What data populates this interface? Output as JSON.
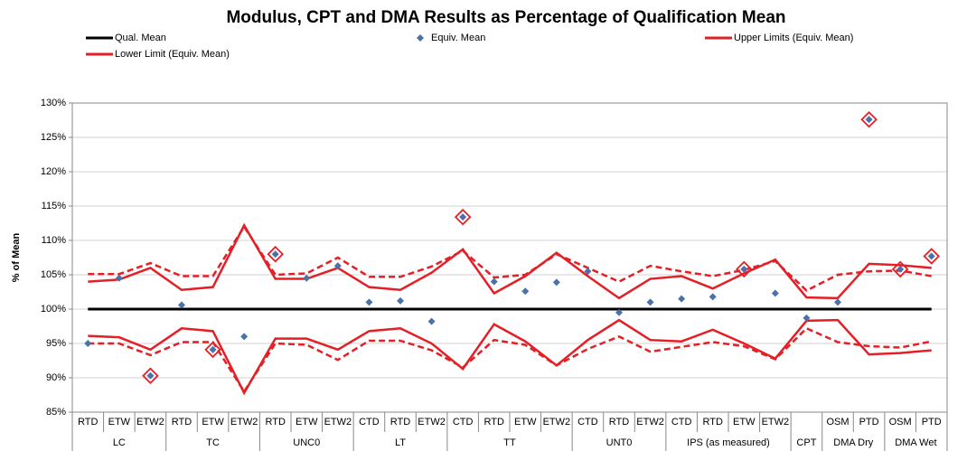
{
  "chart_data": {
    "type": "line",
    "title": "Modulus, CPT and DMA Results as Percentage of Qualification Mean",
    "y_label": "% of Mean",
    "categories": [
      "RTD",
      "ETW",
      "ETW2",
      "RTD",
      "ETW",
      "ETW2",
      "RTD",
      "ETW",
      "ETW2",
      "CTD",
      "RTD",
      "ETW2",
      "CTD",
      "RTD",
      "ETW",
      "ETW2",
      "CTD",
      "RTD",
      "ETW2",
      "CTD",
      "RTD",
      "ETW",
      "ETW2",
      null,
      "OSM",
      "PTD",
      "OSM",
      "PTD"
    ],
    "groups": [
      {
        "name": "LC",
        "size": 3
      },
      {
        "name": "TC",
        "size": 3
      },
      {
        "name": "UNC0",
        "size": 3
      },
      {
        "name": "LT",
        "size": 3
      },
      {
        "name": "TT",
        "size": 4
      },
      {
        "name": "UNT0",
        "size": 3
      },
      {
        "name": "IPS (as measured)",
        "size": 4
      },
      {
        "name": "CPT",
        "size": 1
      },
      {
        "name": "DMA Dry",
        "size": 2
      },
      {
        "name": "DMA Wet",
        "size": 2
      }
    ],
    "ylim": [
      85,
      130
    ],
    "yticks": [
      {
        "value": 85,
        "label": "85%"
      },
      {
        "value": 90,
        "label": "90%"
      },
      {
        "value": 95,
        "label": "95%"
      },
      {
        "value": 100,
        "label": "100%"
      },
      {
        "value": 105,
        "label": "105%"
      },
      {
        "value": 110,
        "label": "110%"
      },
      {
        "value": 115,
        "label": "115%"
      },
      {
        "value": 120,
        "label": "120%"
      },
      {
        "value": 125,
        "label": "125%"
      },
      {
        "value": 130,
        "label": "130%"
      }
    ],
    "grid": true,
    "legend": "top",
    "series": [
      {
        "name": "Qual. Mean",
        "color": "#000000",
        "mark": "line",
        "values": [
          100,
          100,
          100,
          100,
          100,
          100,
          100,
          100,
          100,
          100,
          100,
          100,
          100,
          100,
          100,
          100,
          100,
          100,
          100,
          100,
          100,
          100,
          100,
          100,
          100,
          100,
          100,
          100
        ]
      },
      {
        "name": "Equiv. Mean",
        "color": "#4a72a8",
        "mark": "marker",
        "values": [
          95.0,
          104.5,
          90.3,
          100.6,
          94.1,
          96.0,
          108.0,
          104.5,
          106.3,
          101.0,
          101.2,
          98.2,
          113.4,
          104.0,
          102.6,
          103.9,
          105.5,
          99.5,
          101.0,
          101.5,
          101.8,
          105.8,
          102.3,
          98.7,
          101.0,
          127.6,
          105.8,
          107.7
        ]
      },
      {
        "name": "Upper Limits (Equiv. Mean)",
        "color": "#e41f26",
        "mark": "line",
        "values": [
          104.0,
          104.3,
          106.0,
          102.8,
          103.2,
          112.2,
          104.4,
          104.4,
          106.0,
          103.2,
          102.8,
          105.3,
          108.7,
          102.3,
          104.8,
          108.2,
          104.8,
          101.6,
          104.4,
          104.8,
          103.0,
          105.2,
          107.2,
          101.7,
          101.6,
          106.6,
          106.4,
          106.0
        ]
      },
      {
        "name": "Lower Limit (Equiv. Mean)",
        "color": "#e41f26",
        "mark": "line",
        "values": [
          96.1,
          95.9,
          94.1,
          97.2,
          96.8,
          87.8,
          95.7,
          95.7,
          94.1,
          96.8,
          97.2,
          95.0,
          91.3,
          97.8,
          95.3,
          91.8,
          95.5,
          98.4,
          95.5,
          95.3,
          97.0,
          95.0,
          92.8,
          98.3,
          98.4,
          93.4,
          93.6,
          94.0
        ]
      },
      {
        "color": "#e41f26",
        "mark": "dashed",
        "values": [
          105.1,
          105.1,
          106.7,
          104.8,
          104.8,
          112.0,
          105.0,
          105.2,
          107.5,
          104.7,
          104.7,
          106.2,
          108.5,
          104.6,
          105.0,
          108.0,
          106.0,
          104.0,
          106.3,
          105.5,
          104.8,
          105.7,
          107.0,
          102.7,
          105.0,
          105.5,
          105.6,
          104.8
        ]
      },
      {
        "color": "#e41f26",
        "mark": "dashed",
        "values": [
          95.0,
          95.0,
          93.3,
          95.2,
          95.2,
          88.0,
          95.0,
          94.8,
          92.6,
          95.4,
          95.4,
          94.0,
          91.5,
          95.5,
          94.8,
          91.8,
          94.2,
          96.0,
          93.8,
          94.5,
          95.2,
          94.6,
          92.7,
          97.2,
          95.2,
          94.6,
          94.4,
          95.3
        ]
      },
      {
        "color": "#e41f26",
        "mark": "outline",
        "values": [
          null,
          null,
          90.3,
          null,
          94.1,
          null,
          108.0,
          null,
          null,
          null,
          null,
          null,
          113.4,
          null,
          null,
          null,
          null,
          null,
          null,
          null,
          null,
          105.8,
          null,
          null,
          null,
          127.6,
          105.8,
          107.7
        ]
      }
    ]
  }
}
